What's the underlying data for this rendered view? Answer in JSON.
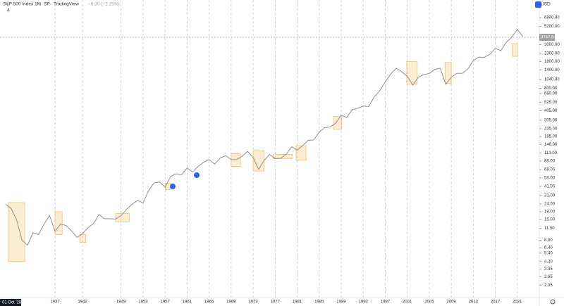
{
  "header": {
    "symbol": "S&P 500 Index",
    "interval": "1M",
    "exchange": "SP",
    "source": "TradingView",
    "change": "−0.30 (−2.25%)",
    "indicator_count": "4",
    "currency": "USD",
    "cursor_date": "01 Oct '28"
  },
  "chart_data": {
    "type": "line",
    "log_scale": true,
    "grid": true,
    "x": [
      1928,
      1929,
      1930,
      1931,
      1932,
      1933,
      1934,
      1935,
      1936,
      1937,
      1938,
      1939,
      1940,
      1941,
      1942,
      1943,
      1944,
      1945,
      1946,
      1947,
      1948,
      1949,
      1950,
      1951,
      1952,
      1953,
      1954,
      1955,
      1956,
      1957,
      1958,
      1959,
      1960,
      1961,
      1962,
      1963,
      1964,
      1965,
      1966,
      1967,
      1968,
      1969,
      1970,
      1971,
      1972,
      1973,
      1974,
      1975,
      1976,
      1977,
      1978,
      1979,
      1980,
      1981,
      1982,
      1983,
      1984,
      1985,
      1986,
      1987,
      1988,
      1989,
      1990,
      1991,
      1992,
      1993,
      1994,
      1995,
      1996,
      1997,
      1998,
      1999,
      2000,
      2001,
      2002,
      2003,
      2004,
      2005,
      2006,
      2007,
      2008,
      2009,
      2010,
      2011,
      2012,
      2013,
      2014,
      2015,
      2016,
      2017,
      2018,
      2019,
      2020,
      2021,
      2022
    ],
    "series": [
      {
        "name": "S&P 500 Index",
        "color": "#8f8f8f",
        "values": [
          24,
          21,
          15,
          8,
          6.9,
          10,
          9.5,
          13,
          17,
          10.5,
          13,
          12.5,
          10.6,
          8.7,
          9.8,
          11.7,
          13.3,
          17.4,
          15.3,
          15.3,
          15.2,
          16.8,
          20.4,
          23.8,
          26.6,
          24.8,
          36,
          45.5,
          46.7,
          40,
          55.2,
          59.9,
          58.1,
          71.6,
          63.1,
          75,
          84.8,
          92.4,
          80.3,
          96.5,
          103.9,
          92.1,
          92.2,
          102,
          118,
          97.6,
          68.6,
          90.2,
          107.5,
          95.1,
          96.1,
          107.9,
          135.8,
          122.6,
          140.6,
          164.9,
          167.2,
          211.3,
          242.2,
          247.1,
          277.7,
          353.4,
          330.2,
          417.1,
          435.7,
          466.5,
          459.3,
          615.9,
          740.7,
          970.4,
          1229,
          1469,
          1320,
          1148,
          880,
          1112,
          1212,
          1248,
          1418,
          1468,
          903,
          1115,
          1258,
          1258,
          1426,
          1848,
          2059,
          2044,
          2239,
          2674,
          2507,
          3231,
          3756,
          4766,
          3840
        ]
      }
    ],
    "last_price": 3747.54,
    "xlim": [
      1927,
      2025
    ],
    "xticks": [
      1937,
      1942,
      1949,
      1953,
      1957,
      1961,
      1965,
      1969,
      1973,
      1977,
      1981,
      1985,
      1989,
      1993,
      1997,
      2001,
      2005,
      2009,
      2013,
      2017,
      2021
    ],
    "ylim": [
      1.5,
      11600
    ],
    "yticks": [
      {
        "value": 6800,
        "label": "6800.00"
      },
      {
        "value": 5200,
        "label": "5200.00"
      },
      {
        "value": 3000,
        "label": "3000.00"
      },
      {
        "value": 2300,
        "label": "2300.00"
      },
      {
        "value": 1800,
        "label": "1800.00"
      },
      {
        "value": 1400,
        "label": "1400.00"
      },
      {
        "value": 1040,
        "label": "1040.00"
      },
      {
        "value": 800,
        "label": "800.00"
      },
      {
        "value": 680,
        "label": "680.00"
      },
      {
        "value": 525,
        "label": "525.00"
      },
      {
        "value": 405,
        "label": "405.00"
      },
      {
        "value": 305,
        "label": "305.00"
      },
      {
        "value": 235,
        "label": "235.00"
      },
      {
        "value": 185,
        "label": "185.00"
      },
      {
        "value": 146,
        "label": "146.00"
      },
      {
        "value": 113,
        "label": "113.00"
      },
      {
        "value": 88,
        "label": "88.00"
      },
      {
        "value": 68,
        "label": "68.00"
      },
      {
        "value": 53,
        "label": "53.00"
      },
      {
        "value": 41,
        "label": "41.00"
      },
      {
        "value": 31,
        "label": "31.00"
      },
      {
        "value": 24,
        "label": "24.00"
      },
      {
        "value": 19,
        "label": "19.00"
      },
      {
        "value": 15,
        "label": "15.00"
      },
      {
        "value": 11.5,
        "label": "11.50"
      },
      {
        "value": 8,
        "label": "8.00"
      },
      {
        "value": 6.4,
        "label": "6.40"
      },
      {
        "value": 5.4,
        "label": "5.40"
      },
      {
        "value": 4.2,
        "label": "4.20"
      },
      {
        "value": 3.35,
        "label": "3.35"
      },
      {
        "value": 2.65,
        "label": "2.65"
      },
      {
        "value": 2.05,
        "label": "2.05"
      }
    ],
    "highlight_color": "#f5c26b",
    "highlights": [
      {
        "x": [
          1928.5,
          1931.5
        ],
        "y": [
          4.2,
          25
        ]
      },
      {
        "x": [
          1937,
          1938.3
        ],
        "y": [
          9.5,
          19
        ]
      },
      {
        "x": [
          1941.5,
          1942.6
        ],
        "y": [
          7.5,
          9.5
        ]
      },
      {
        "x": [
          1948,
          1950.5
        ],
        "y": [
          14,
          18
        ]
      },
      {
        "x": [
          1957,
          1958
        ],
        "y": [
          37,
          45
        ]
      },
      {
        "x": [
          1969,
          1970.7
        ],
        "y": [
          75,
          110
        ]
      },
      {
        "x": [
          1973,
          1975
        ],
        "y": [
          65,
          120
        ]
      },
      {
        "x": [
          1976.6,
          1980.1
        ],
        "y": [
          95,
          108
        ]
      },
      {
        "x": [
          1980.8,
          1982.6
        ],
        "y": [
          90,
          140
        ]
      },
      {
        "x": [
          1987.6,
          1989.1
        ],
        "y": [
          230,
          340
        ]
      },
      {
        "x": [
          2000.9,
          2002.8
        ],
        "y": [
          900,
          1800
        ]
      },
      {
        "x": [
          2007.9,
          2009
        ],
        "y": [
          920,
          1750
        ]
      },
      {
        "x": [
          2020.1,
          2021
        ],
        "y": [
          2100,
          3100
        ]
      }
    ]
  }
}
